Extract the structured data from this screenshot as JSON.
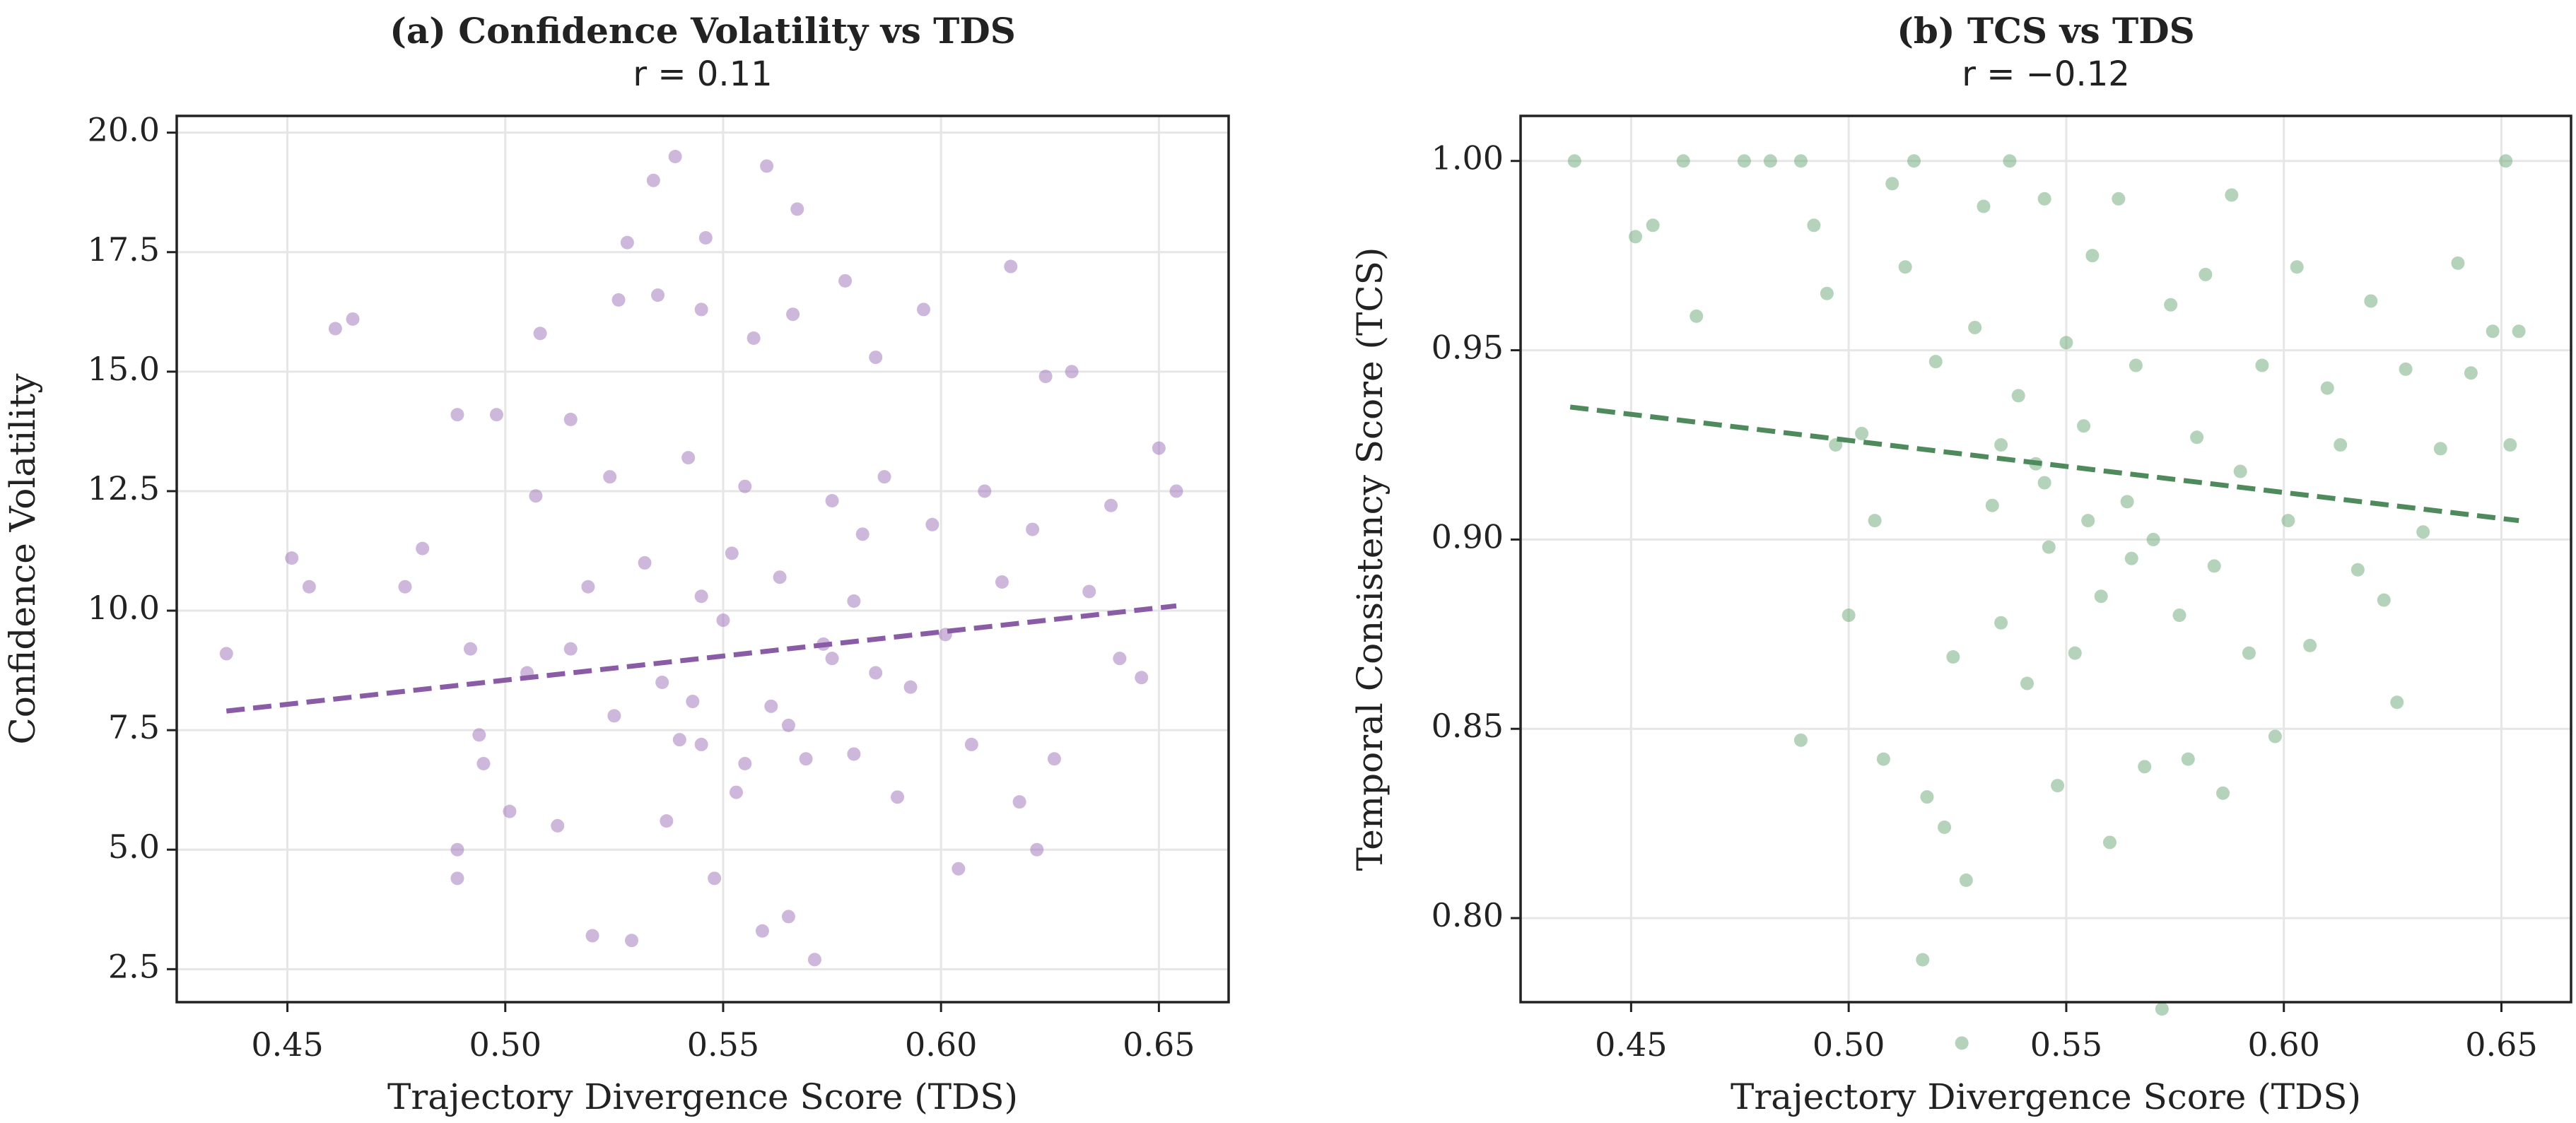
{
  "chart_data": [
    {
      "type": "scatter",
      "title": "(a) Confidence Volatility vs TDS",
      "subtitle": "r = 0.11",
      "xlabel": "Trajectory Divergence Score (TDS)",
      "ylabel": "Confidence Volatility",
      "xlim": [
        0.4246,
        0.666
      ],
      "ylim": [
        1.81,
        20.35
      ],
      "xticks": [
        0.45,
        {
          "value": 0.5,
          "label": "0.50"
        },
        0.55,
        {
          "value": 0.6,
          "label": "0.60"
        },
        0.65
      ],
      "yticks": [
        {
          "value": 2.5,
          "label": "2.5"
        },
        {
          "value": 5,
          "label": "5.0"
        },
        7.5,
        {
          "value": 10,
          "label": "10.0"
        },
        12.5,
        {
          "value": 15,
          "label": "15.0"
        },
        17.5,
        {
          "value": 20,
          "label": "20.0"
        }
      ],
      "grid": true,
      "color": "#9b6fb8",
      "fit_color": "#8a5ca6",
      "x": [
        0.436,
        0.451,
        0.455,
        0.461,
        0.465,
        0.477,
        0.481,
        0.489,
        0.489,
        0.489,
        0.492,
        0.494,
        0.495,
        0.498,
        0.501,
        0.505,
        0.507,
        0.508,
        0.512,
        0.515,
        0.519,
        0.52,
        0.524,
        0.526,
        0.528,
        0.529,
        0.532,
        0.534,
        0.535,
        0.537,
        0.539,
        0.54,
        0.542,
        0.543,
        0.545,
        0.546,
        0.548,
        0.55,
        0.552,
        0.553,
        0.555,
        0.557,
        0.559,
        0.56,
        0.561,
        0.563,
        0.565,
        0.566,
        0.567,
        0.569,
        0.571,
        0.573,
        0.575,
        0.578,
        0.58,
        0.582,
        0.585,
        0.587,
        0.59,
        0.593,
        0.596,
        0.598,
        0.601,
        0.604,
        0.607,
        0.61,
        0.614,
        0.616,
        0.618,
        0.621,
        0.622,
        0.624,
        0.626,
        0.63,
        0.634,
        0.639,
        0.641,
        0.646,
        0.65,
        0.654,
        0.536,
        0.545,
        0.555,
        0.565,
        0.575,
        0.585,
        0.545,
        0.525,
        0.515,
        0.58
      ],
      "values": [
        9.1,
        11.1,
        10.5,
        15.9,
        16.1,
        10.5,
        11.3,
        14.1,
        5.0,
        4.4,
        9.2,
        7.4,
        6.8,
        14.1,
        5.8,
        8.7,
        12.4,
        15.8,
        5.5,
        14.0,
        10.5,
        3.2,
        12.8,
        16.5,
        17.7,
        3.1,
        11.0,
        19.0,
        16.6,
        5.6,
        19.5,
        7.3,
        13.2,
        8.1,
        16.3,
        17.8,
        4.4,
        9.8,
        11.2,
        6.2,
        12.6,
        15.7,
        3.3,
        19.3,
        8.0,
        10.7,
        3.6,
        16.2,
        18.4,
        6.9,
        2.7,
        9.3,
        12.3,
        16.9,
        7.0,
        11.6,
        15.3,
        12.8,
        6.1,
        8.4,
        16.3,
        11.8,
        9.5,
        4.6,
        7.2,
        12.5,
        10.6,
        17.2,
        6.0,
        11.7,
        5.0,
        14.9,
        6.9,
        15.0,
        10.4,
        12.2,
        9.0,
        8.6,
        13.4,
        12.5,
        8.5,
        7.2,
        6.8,
        7.6,
        9.0,
        8.7,
        10.3,
        7.8,
        9.2,
        10.2
      ],
      "fit_x": [
        0.436,
        0.654
      ],
      "fit_values": [
        7.9,
        10.1
      ]
    },
    {
      "type": "scatter",
      "title": "(b) TCS vs TDS",
      "subtitle": "r = −0.12",
      "xlabel": "Trajectory Divergence Score (TDS)",
      "ylabel": "Temporal Consistency Score (TCS)",
      "xlim": [
        0.4246,
        0.666
      ],
      "ylim": [
        0.7778,
        1.0119
      ],
      "xticks": [
        0.45,
        {
          "value": 0.5,
          "label": "0.50"
        },
        0.55,
        {
          "value": 0.6,
          "label": "0.60"
        },
        0.65
      ],
      "yticks": [
        {
          "value": 0.8,
          "label": "0.80"
        },
        0.85,
        {
          "value": 0.9,
          "label": "0.90"
        },
        0.95,
        {
          "value": 1,
          "label": "1.00"
        }
      ],
      "grid": true,
      "color": "#6aa876",
      "fit_color": "#4f8a5c",
      "x": [
        0.437,
        0.451,
        0.455,
        0.462,
        0.465,
        0.476,
        0.482,
        0.489,
        0.489,
        0.492,
        0.495,
        0.497,
        0.5,
        0.503,
        0.506,
        0.508,
        0.51,
        0.513,
        0.515,
        0.517,
        0.518,
        0.52,
        0.522,
        0.524,
        0.526,
        0.527,
        0.529,
        0.531,
        0.533,
        0.535,
        0.537,
        0.539,
        0.541,
        0.543,
        0.545,
        0.546,
        0.548,
        0.55,
        0.552,
        0.554,
        0.556,
        0.558,
        0.56,
        0.562,
        0.564,
        0.566,
        0.568,
        0.57,
        0.572,
        0.574,
        0.576,
        0.578,
        0.58,
        0.582,
        0.584,
        0.586,
        0.588,
        0.59,
        0.592,
        0.595,
        0.598,
        0.601,
        0.603,
        0.606,
        0.61,
        0.613,
        0.617,
        0.62,
        0.623,
        0.626,
        0.628,
        0.632,
        0.636,
        0.64,
        0.643,
        0.648,
        0.651,
        0.652,
        0.654,
        0.545,
        0.555,
        0.535,
        0.565
      ],
      "values": [
        1.0,
        0.98,
        0.983,
        1.0,
        0.959,
        1.0,
        1.0,
        1.0,
        0.847,
        0.983,
        0.965,
        0.925,
        0.88,
        0.928,
        0.905,
        0.842,
        0.994,
        0.972,
        1.0,
        0.789,
        0.832,
        0.947,
        0.824,
        0.869,
        0.767,
        0.81,
        0.956,
        0.988,
        0.909,
        0.878,
        1.0,
        0.938,
        0.862,
        0.92,
        0.99,
        0.898,
        0.835,
        0.952,
        0.87,
        0.93,
        0.975,
        0.885,
        0.82,
        0.99,
        0.91,
        0.946,
        0.84,
        0.9,
        0.776,
        0.962,
        0.88,
        0.842,
        0.927,
        0.97,
        0.893,
        0.833,
        0.991,
        0.918,
        0.87,
        0.946,
        0.848,
        0.905,
        0.972,
        0.872,
        0.94,
        0.925,
        0.892,
        0.963,
        0.884,
        0.857,
        0.945,
        0.902,
        0.924,
        0.973,
        0.944,
        0.955,
        1.0,
        0.925,
        0.955,
        0.915,
        0.905,
        0.925,
        0.895
      ],
      "fit_x": [
        0.436,
        0.654
      ],
      "fit_values": [
        0.935,
        0.905
      ]
    }
  ]
}
